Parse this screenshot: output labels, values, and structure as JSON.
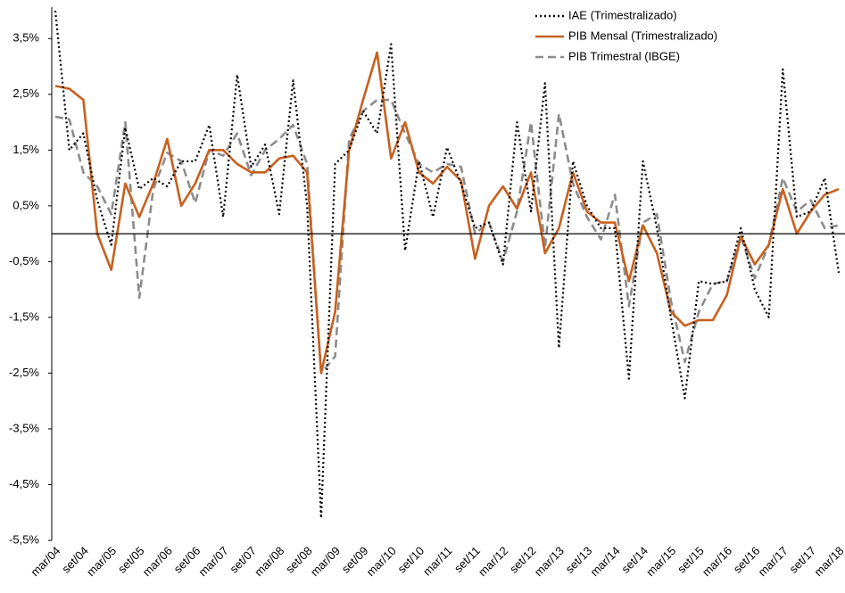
{
  "chart_data": {
    "type": "line",
    "categories": [
      "mar/04",
      null,
      "set/04",
      null,
      "mar/05",
      null,
      "set/05",
      null,
      "mar/06",
      null,
      "set/06",
      null,
      "mar/07",
      null,
      "set/07",
      null,
      "mar/08",
      null,
      "set/08",
      null,
      "mar/09",
      null,
      "set/09",
      null,
      "mar/10",
      null,
      "set/10",
      null,
      "mar/11",
      null,
      "set/11",
      null,
      "mar/12",
      null,
      "set/12",
      null,
      "mar/13",
      null,
      "set/13",
      null,
      "mar/14",
      null,
      "set/14",
      null,
      "mar/15",
      null,
      "set/15",
      null,
      "mar/16",
      null,
      "set/16",
      null,
      "mar/17",
      null,
      "set/17",
      null,
      "mar/18"
    ],
    "series": [
      {
        "name": "IAE (Trimestralizado)",
        "color": "#000000",
        "style": "dotted",
        "values": [
          4.0,
          1.5,
          1.8,
          0.6,
          -0.2,
          1.9,
          0.8,
          1.0,
          0.85,
          1.3,
          1.3,
          1.95,
          0.3,
          2.85,
          1.2,
          1.6,
          0.35,
          2.75,
          0.5,
          -5.1,
          1.25,
          1.5,
          2.2,
          1.8,
          3.4,
          -0.3,
          1.3,
          0.3,
          1.55,
          0.9,
          0.1,
          0.2,
          -0.55,
          2.0,
          0.4,
          2.7,
          -2.05,
          1.3,
          0.5,
          0.1,
          0.1,
          -2.6,
          1.3,
          0.1,
          -1.5,
          -2.95,
          -0.85,
          -0.9,
          -0.85,
          0.1,
          -1.0,
          -1.5,
          2.95,
          0.3,
          0.4,
          1.0,
          -0.7
        ]
      },
      {
        "name": "PIB Mensal (Trimestralizado)",
        "color": "#c8601e",
        "style": "solid",
        "values": [
          2.65,
          2.6,
          2.4,
          0.0,
          -0.65,
          0.9,
          0.3,
          0.9,
          1.7,
          0.5,
          0.9,
          1.5,
          1.5,
          1.25,
          1.1,
          1.1,
          1.35,
          1.4,
          1.1,
          -2.5,
          -1.4,
          1.5,
          2.4,
          3.25,
          1.35,
          2.0,
          1.1,
          0.9,
          1.2,
          0.95,
          -0.45,
          0.5,
          0.85,
          0.45,
          1.1,
          -0.35,
          0.1,
          1.1,
          0.4,
          0.2,
          0.2,
          -0.85,
          0.15,
          -0.35,
          -1.4,
          -1.65,
          -1.55,
          -1.55,
          -1.1,
          -0.05,
          -0.55,
          -0.2,
          0.8,
          0.0,
          0.4,
          0.7,
          0.8
        ]
      },
      {
        "name": "PIB Trimestral (IBGE)",
        "color": "#8c8c8c",
        "style": "dashed",
        "values": [
          2.1,
          2.05,
          1.1,
          0.85,
          0.35,
          2.0,
          -1.15,
          0.8,
          1.45,
          1.3,
          0.55,
          1.5,
          1.4,
          1.8,
          1.05,
          1.5,
          1.7,
          1.95,
          1.25,
          -2.5,
          -2.2,
          1.7,
          2.2,
          2.4,
          2.4,
          1.8,
          1.25,
          1.1,
          1.25,
          1.2,
          0.0,
          0.2,
          -0.5,
          0.4,
          2.0,
          -0.25,
          2.15,
          0.9,
          0.3,
          -0.1,
          0.7,
          -1.3,
          0.2,
          0.35,
          -1.2,
          -2.3,
          -1.4,
          -0.9,
          -0.85,
          -0.05,
          -0.8,
          -0.2,
          1.0,
          0.4,
          0.6,
          0.1,
          0.15
        ]
      }
    ],
    "ylim": [
      -5.5,
      4.0
    ],
    "yticks": [
      {
        "value": -5.5,
        "label": "-5,5%"
      },
      {
        "value": -4.5,
        "label": "-4,5%"
      },
      {
        "value": -3.5,
        "label": "-3,5%"
      },
      {
        "value": -2.5,
        "label": "-2,5%"
      },
      {
        "value": -1.5,
        "label": "-1,5%"
      },
      {
        "value": -0.5,
        "label": "-0,5%"
      },
      {
        "value": 0.5,
        "label": "0,5%"
      },
      {
        "value": 1.5,
        "label": "1,5%"
      },
      {
        "value": 2.5,
        "label": "2,5%"
      },
      {
        "value": 3.5,
        "label": "3,5%"
      }
    ],
    "grid": false,
    "legend": "top-right"
  }
}
